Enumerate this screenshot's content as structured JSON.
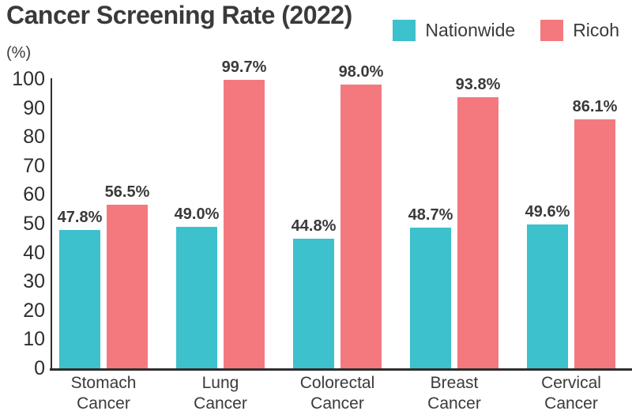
{
  "chart_data": {
    "type": "bar",
    "title": "Cancer Screening Rate (2022)",
    "ylabel": "(%)",
    "xlabel": "",
    "categories": [
      "Stomach Cancer",
      "Lung Cancer",
      "Colorectal Cancer",
      "Breast Cancer",
      "Cervical Cancer"
    ],
    "series": [
      {
        "name": "Nationwide",
        "color": "#3cc1cd",
        "values": [
          47.8,
          49.0,
          44.8,
          48.7,
          49.6
        ],
        "value_labels": [
          "47.8%",
          "49.0%",
          "44.8%",
          "48.7%",
          "49.6%"
        ]
      },
      {
        "name": "Ricoh",
        "color": "#f4797f",
        "values": [
          56.5,
          99.7,
          98.0,
          93.8,
          86.1
        ],
        "value_labels": [
          "56.5%",
          "99.7%",
          "98.0%",
          "93.8%",
          "86.1%"
        ]
      }
    ],
    "ylim": [
      0,
      100
    ],
    "ytick_step": 10,
    "ytick_labels": [
      "0",
      "10",
      "20",
      "30",
      "40",
      "50",
      "60",
      "70",
      "80",
      "90",
      "100"
    ],
    "grid": false,
    "legend_position": "top-right"
  },
  "colors": {
    "nationwide": "#3cc1cd",
    "ricoh": "#f4797f",
    "text": "#3a3a3a",
    "axis": "#2e2e2e",
    "background": "#ffffff"
  }
}
